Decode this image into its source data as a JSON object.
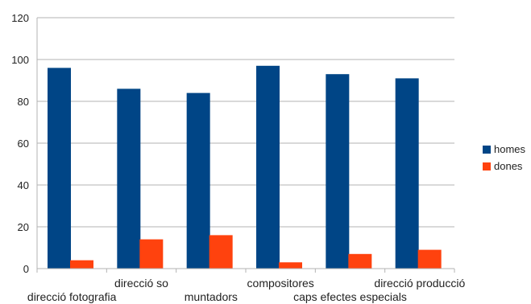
{
  "chart_data": {
    "type": "bar",
    "categories": [
      "direcció fotografia",
      "direcció so",
      "muntadors",
      "compositores",
      "caps efectes especials",
      "direcció producció"
    ],
    "series": [
      {
        "name": "homes",
        "color": "#004586",
        "values": [
          96,
          86,
          84,
          97,
          93,
          91
        ]
      },
      {
        "name": "dones",
        "color": "#ff420e",
        "values": [
          4,
          14,
          16,
          3,
          7,
          9
        ]
      }
    ],
    "ylim": [
      0,
      120
    ],
    "yticks": [
      "0",
      "20",
      "40",
      "60",
      "80",
      "100",
      "120"
    ],
    "grid": true,
    "legend": "right"
  }
}
